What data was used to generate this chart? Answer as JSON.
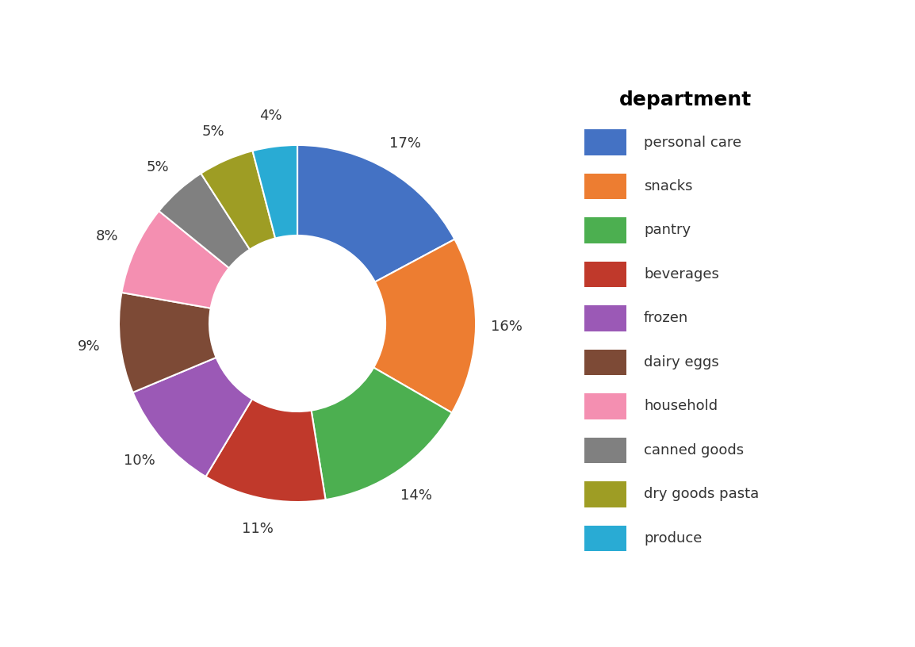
{
  "title": "department",
  "categories": [
    "personal care",
    "snacks",
    "pantry",
    "beverages",
    "frozen",
    "dairy eggs",
    "household",
    "canned goods",
    "dry goods pasta",
    "produce"
  ],
  "values": [
    17,
    16,
    14,
    11,
    10,
    9,
    8,
    5,
    5,
    4
  ],
  "colors": [
    "#4472C4",
    "#ED7D31",
    "#4CAF50",
    "#C0392B",
    "#9B59B6",
    "#7D4A36",
    "#F48FB1",
    "#808080",
    "#9E9D24",
    "#29ABD4"
  ],
  "background_color": "#ffffff",
  "title_fontsize": 18,
  "label_fontsize": 13,
  "legend_fontsize": 13
}
